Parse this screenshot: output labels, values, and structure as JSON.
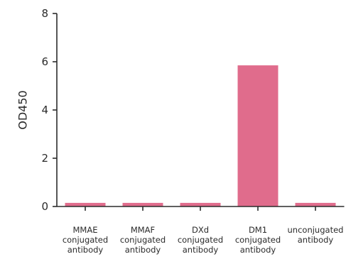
{
  "chart_data": {
    "type": "bar",
    "title": "",
    "xlabel": "",
    "ylabel": "OD450",
    "ylim": [
      0,
      8
    ],
    "yticks": [
      0,
      2,
      4,
      6,
      8
    ],
    "grid": false,
    "categories": [
      [
        "MMAE",
        "conjugated",
        "antibody"
      ],
      [
        "MMAF",
        "conjugated",
        "antibody"
      ],
      [
        "DXd",
        "conjugated",
        "antibody"
      ],
      [
        "DM1",
        "conjugated",
        "antibody"
      ],
      [
        "unconjugated",
        "antibody"
      ]
    ],
    "values": [
      0.15,
      0.15,
      0.15,
      5.85,
      0.15
    ],
    "colors": {
      "bar": "#e06c8c",
      "axis": "#2b2b2b"
    }
  }
}
